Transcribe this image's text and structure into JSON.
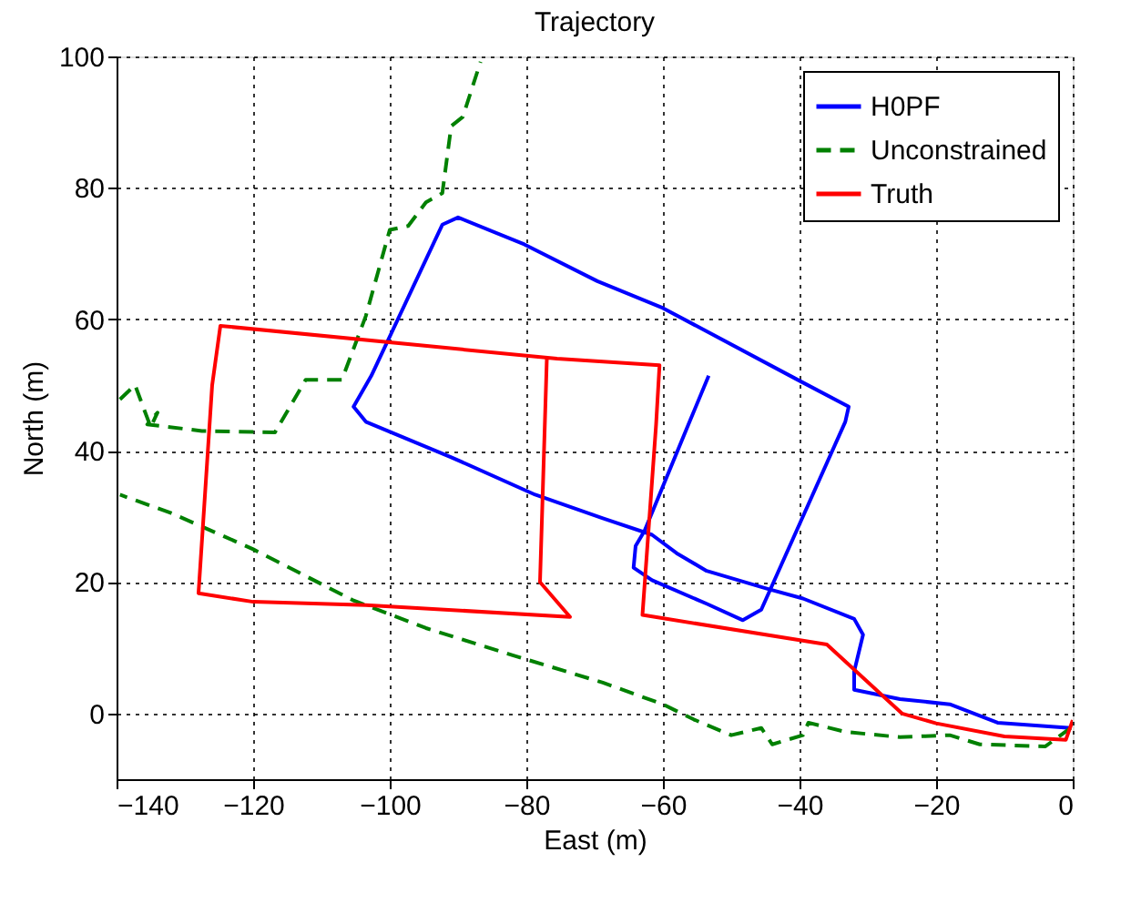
{
  "chart_data": {
    "type": "line",
    "title": "Trajectory",
    "xlabel": "East (m)",
    "ylabel": "North (m)",
    "xlim": [
      -140,
      0
    ],
    "ylim": [
      -10,
      100
    ],
    "xticks": [
      -140,
      -120,
      -100,
      -80,
      -60,
      -40,
      -20,
      0
    ],
    "yticks": [
      0,
      20,
      40,
      60,
      80,
      100
    ],
    "grid": true,
    "legend": "top right",
    "marker": "none",
    "series": [
      {
        "name": "H0PF",
        "color": "#0000ff",
        "line_style": "solid",
        "x": [
          -0.3,
          -11,
          -18,
          -25.3,
          -32,
          -32,
          -30.7,
          -32,
          -39.5,
          -44.8,
          -53.6,
          -58,
          -61.6,
          -68.8,
          -78.7,
          -91,
          -103.5,
          -105.3,
          -102.7,
          -92.3,
          -90,
          -80.3,
          -69.6,
          -60,
          -40.3,
          -32.8,
          -33.3,
          -45.6,
          -48.3,
          -53.6,
          -61.6,
          -64.3,
          -64,
          -62.7,
          -56.1,
          -53.3
        ],
        "values": [
          -2.2,
          -1.4,
          1.4,
          2.2,
          3.6,
          6.4,
          12,
          14.4,
          17.5,
          19,
          21.7,
          24.4,
          27.2,
          29.7,
          33.3,
          39,
          44.4,
          46.7,
          51.4,
          74.4,
          75.5,
          71.4,
          65.8,
          61.7,
          50.8,
          46.7,
          44.4,
          15.8,
          14.2,
          16.7,
          20.3,
          22.2,
          25.5,
          27.8,
          44.4,
          51.4
        ]
      },
      {
        "name": "Unconstrained",
        "color": "#008000",
        "line_style": "dashed",
        "x": [
          -0.3,
          -4,
          -13.6,
          -18,
          -25.3,
          -33.3,
          -38.7,
          -39.5,
          -44,
          -45.6,
          -50,
          -55.5,
          -60,
          -68.8,
          -82.1,
          -94.7,
          -105.3,
          -120,
          -132,
          -139.5,
          null,
          -139.5,
          -137.3,
          -136.3,
          -135,
          -134,
          -135.5,
          -127.5,
          -116.8,
          -112.3,
          -107,
          -103.5,
          -100,
          -97.3,
          -94.7,
          -92.3,
          -91,
          -89.3,
          -86.7
        ],
        "values": [
          -2.2,
          -5,
          -4.7,
          -3.3,
          -3.6,
          -2.8,
          -1.4,
          -3.3,
          -4.7,
          -2.2,
          -3.3,
          -0.9,
          1.4,
          4.7,
          8.9,
          13,
          17.2,
          25,
          30.5,
          33.3,
          null,
          47.8,
          50,
          47.2,
          43.6,
          45.8,
          44,
          43,
          42.8,
          50.8,
          50.8,
          60.5,
          73.6,
          74.2,
          77.8,
          79.2,
          89.4,
          90.8,
          99.2
        ]
      },
      {
        "name": "Truth",
        "color": "#ff0000",
        "line_style": "solid",
        "x": [
          0,
          -1,
          -10,
          -20,
          -25,
          -36,
          -63,
          -61,
          -60.5,
          -75.5,
          -124.8,
          -126,
          -128,
          -120,
          -103.5,
          -73.6,
          -78,
          -77
        ],
        "values": [
          -1,
          -4,
          -3.5,
          -1.5,
          0,
          10.5,
          15,
          44,
          53,
          54,
          59,
          50,
          18.3,
          17,
          16.5,
          14.7,
          20,
          54
        ]
      }
    ]
  }
}
